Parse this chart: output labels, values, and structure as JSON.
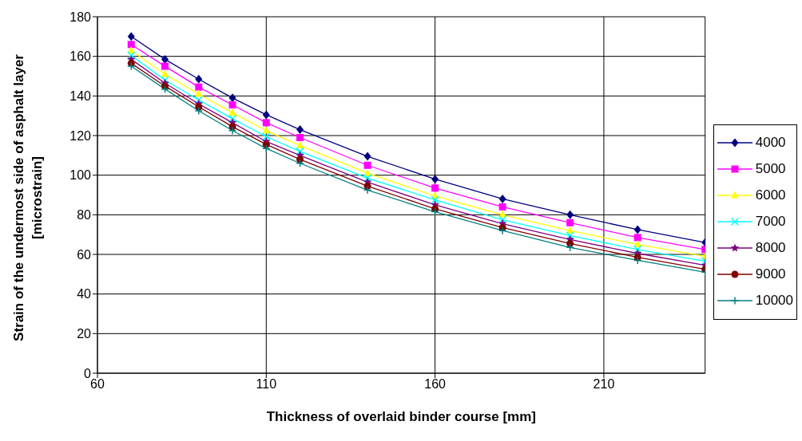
{
  "chart_data": {
    "type": "line",
    "xlabel": "Thickness of overlaid binder course [mm]",
    "ylabel": "Strain of the undermost side of asphalt layer [microstrain]",
    "x": [
      70,
      80,
      90,
      100,
      110,
      120,
      140,
      160,
      180,
      200,
      220,
      240
    ],
    "xlim": [
      60,
      240
    ],
    "xticks": [
      60,
      110,
      160,
      210
    ],
    "ylim": [
      0,
      180
    ],
    "yticks": [
      0,
      20,
      40,
      60,
      80,
      100,
      120,
      140,
      160,
      180
    ],
    "grid": true,
    "legend": "right",
    "series": [
      {
        "name": "4000",
        "color": "#000080",
        "marker": "diamond",
        "values": [
          170,
          158.5,
          148.5,
          139,
          130.5,
          123,
          109.5,
          98,
          88,
          80,
          72.5,
          66
        ]
      },
      {
        "name": "5000",
        "color": "#ff00ff",
        "marker": "square",
        "values": [
          166,
          155,
          144.5,
          135.5,
          126.5,
          119,
          105,
          93.5,
          84,
          76,
          68.5,
          62.5
        ]
      },
      {
        "name": "6000",
        "color": "#ffff00",
        "marker": "triangle",
        "values": [
          163,
          151,
          141,
          131.5,
          122.5,
          115,
          101,
          89.5,
          80,
          72,
          65,
          59
        ]
      },
      {
        "name": "7000",
        "color": "#00ffff",
        "marker": "cross",
        "values": [
          160.5,
          148,
          138,
          128.5,
          119.5,
          112,
          98.5,
          87.5,
          77.5,
          69.5,
          62.5,
          56.5
        ]
      },
      {
        "name": "8000",
        "color": "#800080",
        "marker": "star",
        "values": [
          158.5,
          146.5,
          136,
          126.5,
          117,
          110,
          96.5,
          85,
          75.5,
          67.5,
          60.5,
          54.5
        ]
      },
      {
        "name": "9000",
        "color": "#800000",
        "marker": "circle",
        "values": [
          156.5,
          145,
          134.5,
          124.5,
          115.5,
          108,
          94.5,
          83,
          73.5,
          65.5,
          58.5,
          52.5
        ]
      },
      {
        "name": "10000",
        "color": "#008080",
        "marker": "plus",
        "values": [
          155,
          143.5,
          132.5,
          122.5,
          113.5,
          106,
          92.5,
          81.5,
          72,
          63.5,
          57,
          51
        ]
      }
    ]
  }
}
